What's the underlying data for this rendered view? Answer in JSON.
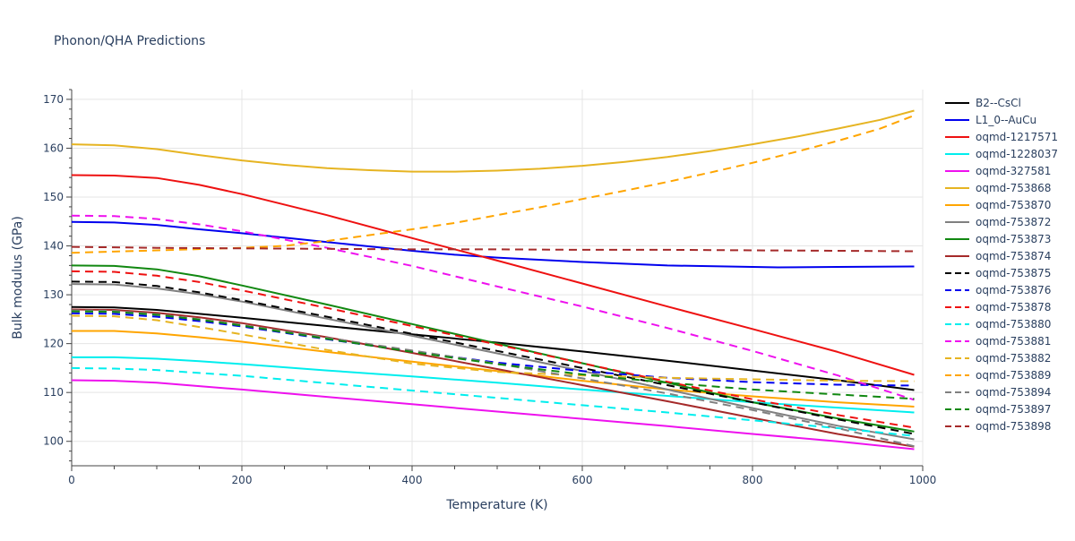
{
  "chart_data": {
    "type": "line",
    "title": "Phonon/QHA Predictions",
    "xlabel": "Temperature (K)",
    "ylabel": "Bulk modulus (GPa)",
    "xlim": [
      0,
      1000
    ],
    "ylim": [
      95,
      172
    ],
    "xticks": [
      0,
      200,
      400,
      600,
      800,
      1000
    ],
    "yticks": [
      100,
      110,
      120,
      130,
      140,
      150,
      160,
      170
    ],
    "grid": true,
    "legend_position": "right",
    "series": [
      {
        "name": "B2--CsCl",
        "color": "#000000",
        "dash": "solid",
        "points": [
          [
            0,
            127.5
          ],
          [
            50,
            127.4
          ],
          [
            100,
            126.9
          ],
          [
            150,
            126.1
          ],
          [
            200,
            125.3
          ],
          [
            300,
            123.6
          ],
          [
            400,
            121.9
          ],
          [
            500,
            120.2
          ],
          [
            600,
            118.4
          ],
          [
            700,
            116.5
          ],
          [
            800,
            114.5
          ],
          [
            900,
            112.5
          ],
          [
            990,
            110.5
          ]
        ]
      },
      {
        "name": "L1_0--AuCu",
        "color": "#0000ee",
        "dash": "solid",
        "points": [
          [
            0,
            144.9
          ],
          [
            50,
            144.8
          ],
          [
            100,
            144.3
          ],
          [
            150,
            143.4
          ],
          [
            200,
            142.6
          ],
          [
            300,
            140.8
          ],
          [
            400,
            139.0
          ],
          [
            450,
            138.2
          ],
          [
            500,
            137.6
          ],
          [
            600,
            136.7
          ],
          [
            700,
            136.0
          ],
          [
            800,
            135.7
          ],
          [
            830,
            135.6
          ],
          [
            900,
            135.7
          ],
          [
            990,
            135.8
          ]
        ]
      },
      {
        "name": "oqmd-1217571",
        "color": "#ee1111",
        "dash": "solid",
        "points": [
          [
            0,
            154.5
          ],
          [
            50,
            154.4
          ],
          [
            100,
            153.9
          ],
          [
            150,
            152.5
          ],
          [
            200,
            150.6
          ],
          [
            300,
            146.3
          ],
          [
            400,
            141.6
          ],
          [
            500,
            137.0
          ],
          [
            600,
            132.3
          ],
          [
            700,
            127.6
          ],
          [
            800,
            123.0
          ],
          [
            900,
            118.3
          ],
          [
            990,
            113.6
          ]
        ]
      },
      {
        "name": "oqmd-1228037",
        "color": "#00eeee",
        "dash": "solid",
        "points": [
          [
            0,
            117.2
          ],
          [
            50,
            117.2
          ],
          [
            100,
            116.9
          ],
          [
            150,
            116.4
          ],
          [
            200,
            115.8
          ],
          [
            300,
            114.5
          ],
          [
            400,
            113.3
          ],
          [
            500,
            112.0
          ],
          [
            600,
            110.6
          ],
          [
            700,
            109.3
          ],
          [
            800,
            108.0
          ],
          [
            900,
            106.9
          ],
          [
            990,
            105.9
          ]
        ]
      },
      {
        "name": "oqmd-327581",
        "color": "#ee11ee",
        "dash": "solid",
        "points": [
          [
            0,
            112.5
          ],
          [
            50,
            112.4
          ],
          [
            100,
            112.0
          ],
          [
            150,
            111.3
          ],
          [
            200,
            110.6
          ],
          [
            300,
            109.1
          ],
          [
            400,
            107.6
          ],
          [
            500,
            106.1
          ],
          [
            600,
            104.6
          ],
          [
            700,
            103.1
          ],
          [
            800,
            101.5
          ],
          [
            900,
            100.0
          ],
          [
            990,
            98.4
          ]
        ]
      },
      {
        "name": "oqmd-753868",
        "color": "#e6b422",
        "dash": "solid",
        "points": [
          [
            0,
            160.8
          ],
          [
            50,
            160.6
          ],
          [
            100,
            159.8
          ],
          [
            150,
            158.6
          ],
          [
            200,
            157.5
          ],
          [
            250,
            156.6
          ],
          [
            300,
            155.9
          ],
          [
            350,
            155.5
          ],
          [
            400,
            155.2
          ],
          [
            450,
            155.2
          ],
          [
            500,
            155.4
          ],
          [
            550,
            155.8
          ],
          [
            600,
            156.4
          ],
          [
            650,
            157.2
          ],
          [
            700,
            158.2
          ],
          [
            750,
            159.4
          ],
          [
            800,
            160.8
          ],
          [
            850,
            162.3
          ],
          [
            900,
            164.0
          ],
          [
            950,
            165.8
          ],
          [
            990,
            167.7
          ]
        ]
      },
      {
        "name": "oqmd-753870",
        "color": "#ffa500",
        "dash": "solid",
        "points": [
          [
            0,
            122.6
          ],
          [
            50,
            122.6
          ],
          [
            100,
            122.1
          ],
          [
            150,
            121.3
          ],
          [
            200,
            120.4
          ],
          [
            300,
            118.3
          ],
          [
            400,
            116.3
          ],
          [
            500,
            114.4
          ],
          [
            600,
            112.4
          ],
          [
            700,
            110.6
          ],
          [
            800,
            109.2
          ],
          [
            900,
            108.0
          ],
          [
            990,
            107.1
          ]
        ]
      },
      {
        "name": "oqmd-753872",
        "color": "#808080",
        "dash": "solid",
        "points": [
          [
            0,
            132.2
          ],
          [
            50,
            132.1
          ],
          [
            100,
            131.3
          ],
          [
            150,
            130.1
          ],
          [
            200,
            128.6
          ],
          [
            300,
            125.1
          ],
          [
            400,
            121.6
          ],
          [
            500,
            118.0
          ],
          [
            600,
            114.4
          ],
          [
            700,
            110.6
          ],
          [
            800,
            106.8
          ],
          [
            900,
            103.2
          ],
          [
            990,
            100.4
          ]
        ]
      },
      {
        "name": "oqmd-753873",
        "color": "#118811",
        "dash": "solid",
        "points": [
          [
            0,
            136.0
          ],
          [
            50,
            135.9
          ],
          [
            100,
            135.2
          ],
          [
            150,
            133.8
          ],
          [
            200,
            131.9
          ],
          [
            300,
            128.0
          ],
          [
            400,
            124.0
          ],
          [
            500,
            120.0
          ],
          [
            600,
            116.0
          ],
          [
            700,
            112.0
          ],
          [
            800,
            108.0
          ],
          [
            900,
            104.7
          ],
          [
            990,
            102.0
          ]
        ]
      },
      {
        "name": "oqmd-753874",
        "color": "#a52a2a",
        "dash": "solid",
        "points": [
          [
            0,
            127.0
          ],
          [
            50,
            126.9
          ],
          [
            100,
            126.3
          ],
          [
            150,
            125.4
          ],
          [
            200,
            124.2
          ],
          [
            300,
            121.3
          ],
          [
            400,
            118.1
          ],
          [
            500,
            114.8
          ],
          [
            600,
            111.5
          ],
          [
            700,
            108.2
          ],
          [
            800,
            104.8
          ],
          [
            900,
            101.5
          ],
          [
            990,
            98.9
          ]
        ]
      },
      {
        "name": "oqmd-753875",
        "color": "#000000",
        "dash": "dash",
        "points": [
          [
            0,
            132.7
          ],
          [
            50,
            132.6
          ],
          [
            100,
            131.8
          ],
          [
            150,
            130.5
          ],
          [
            200,
            128.9
          ],
          [
            300,
            125.5
          ],
          [
            400,
            122.0
          ],
          [
            500,
            118.5
          ],
          [
            600,
            115.0
          ],
          [
            700,
            111.5
          ],
          [
            800,
            108.0
          ],
          [
            900,
            104.5
          ],
          [
            990,
            101.5
          ]
        ]
      },
      {
        "name": "oqmd-753876",
        "color": "#0000ee",
        "dash": "dash",
        "points": [
          [
            0,
            126.2
          ],
          [
            50,
            126.1
          ],
          [
            100,
            125.5
          ],
          [
            150,
            124.6
          ],
          [
            200,
            123.5
          ],
          [
            300,
            120.9
          ],
          [
            400,
            118.4
          ],
          [
            500,
            116.1
          ],
          [
            600,
            114.4
          ],
          [
            700,
            113.0
          ],
          [
            800,
            112.1
          ],
          [
            900,
            111.6
          ],
          [
            990,
            111.4
          ]
        ]
      },
      {
        "name": "oqmd-753878",
        "color": "#ee1111",
        "dash": "dash",
        "points": [
          [
            0,
            134.8
          ],
          [
            50,
            134.7
          ],
          [
            100,
            133.9
          ],
          [
            150,
            132.6
          ],
          [
            200,
            130.9
          ],
          [
            300,
            127.3
          ],
          [
            400,
            123.6
          ],
          [
            500,
            119.8
          ],
          [
            600,
            116.0
          ],
          [
            700,
            112.2
          ],
          [
            800,
            108.6
          ],
          [
            900,
            105.4
          ],
          [
            990,
            102.8
          ]
        ]
      },
      {
        "name": "oqmd-753880",
        "color": "#00eeee",
        "dash": "dash",
        "points": [
          [
            0,
            115.0
          ],
          [
            50,
            114.9
          ],
          [
            100,
            114.6
          ],
          [
            150,
            114.0
          ],
          [
            200,
            113.4
          ],
          [
            300,
            111.9
          ],
          [
            400,
            110.4
          ],
          [
            500,
            108.9
          ],
          [
            600,
            107.4
          ],
          [
            700,
            105.9
          ],
          [
            800,
            104.3
          ],
          [
            900,
            102.7
          ],
          [
            990,
            101.1
          ]
        ]
      },
      {
        "name": "oqmd-753881",
        "color": "#ee11ee",
        "dash": "dash",
        "points": [
          [
            0,
            146.2
          ],
          [
            50,
            146.1
          ],
          [
            100,
            145.5
          ],
          [
            150,
            144.4
          ],
          [
            200,
            143.0
          ],
          [
            300,
            139.6
          ],
          [
            400,
            135.9
          ],
          [
            500,
            131.7
          ],
          [
            600,
            127.6
          ],
          [
            700,
            123.2
          ],
          [
            800,
            118.5
          ],
          [
            900,
            113.5
          ],
          [
            990,
            108.5
          ]
        ]
      },
      {
        "name": "oqmd-753882",
        "color": "#e6b422",
        "dash": "dash",
        "points": [
          [
            0,
            125.7
          ],
          [
            50,
            125.6
          ],
          [
            100,
            124.8
          ],
          [
            150,
            123.4
          ],
          [
            200,
            121.9
          ],
          [
            300,
            118.7
          ],
          [
            400,
            115.9
          ],
          [
            500,
            114.2
          ],
          [
            600,
            113.5
          ],
          [
            700,
            113.0
          ],
          [
            800,
            112.7
          ],
          [
            900,
            112.4
          ],
          [
            990,
            112.3
          ]
        ]
      },
      {
        "name": "oqmd-753889",
        "color": "#ffa500",
        "dash": "dash",
        "points": [
          [
            0,
            138.6
          ],
          [
            100,
            139.1
          ],
          [
            200,
            139.6
          ],
          [
            250,
            140.0
          ],
          [
            300,
            141.0
          ],
          [
            350,
            142.2
          ],
          [
            400,
            143.4
          ],
          [
            450,
            144.7
          ],
          [
            500,
            146.3
          ],
          [
            550,
            147.9
          ],
          [
            600,
            149.6
          ],
          [
            650,
            151.3
          ],
          [
            700,
            153.1
          ],
          [
            750,
            155.0
          ],
          [
            800,
            157.0
          ],
          [
            850,
            159.2
          ],
          [
            900,
            161.5
          ],
          [
            950,
            164.0
          ],
          [
            990,
            166.7
          ]
        ]
      },
      {
        "name": "oqmd-753894",
        "color": "#808080",
        "dash": "dash",
        "points": [
          [
            0,
            126.8
          ],
          [
            50,
            126.7
          ],
          [
            100,
            126.0
          ],
          [
            150,
            125.0
          ],
          [
            200,
            123.8
          ],
          [
            300,
            121.2
          ],
          [
            400,
            118.6
          ],
          [
            500,
            115.9
          ],
          [
            600,
            112.9
          ],
          [
            700,
            109.8
          ],
          [
            800,
            106.4
          ],
          [
            900,
            102.7
          ],
          [
            990,
            99.0
          ]
        ]
      },
      {
        "name": "oqmd-753897",
        "color": "#118811",
        "dash": "dash",
        "points": [
          [
            0,
            126.6
          ],
          [
            50,
            126.5
          ],
          [
            100,
            125.9
          ],
          [
            150,
            124.9
          ],
          [
            200,
            123.7
          ],
          [
            300,
            121.0
          ],
          [
            400,
            118.3
          ],
          [
            500,
            115.8
          ],
          [
            600,
            113.7
          ],
          [
            700,
            112.0
          ],
          [
            800,
            110.6
          ],
          [
            900,
            109.6
          ],
          [
            990,
            108.7
          ]
        ]
      },
      {
        "name": "oqmd-753898",
        "color": "#a52a2a",
        "dash": "dash",
        "points": [
          [
            0,
            139.8
          ],
          [
            100,
            139.6
          ],
          [
            200,
            139.5
          ],
          [
            300,
            139.4
          ],
          [
            400,
            139.3
          ],
          [
            500,
            139.3
          ],
          [
            600,
            139.2
          ],
          [
            700,
            139.2
          ],
          [
            800,
            139.1
          ],
          [
            900,
            139.0
          ],
          [
            990,
            138.9
          ]
        ]
      }
    ]
  }
}
